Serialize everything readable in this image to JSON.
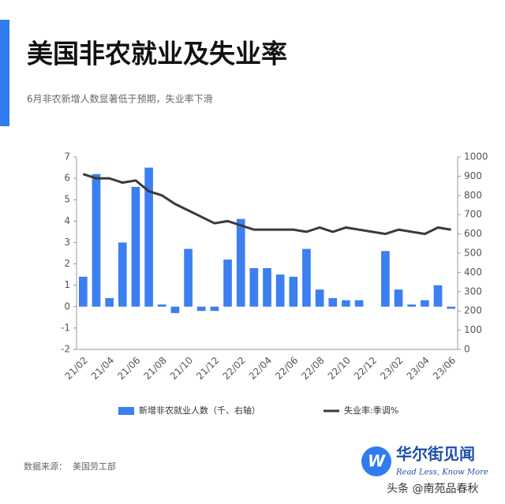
{
  "chart_data": {
    "type": "bar",
    "title": "美国非农就业及失业率",
    "subtitle": "6月非农新增人数显著低于预期，失业率下滑",
    "categories": [
      "21/02",
      null,
      "21/04",
      null,
      "21/06",
      null,
      "21/08",
      null,
      "21/10",
      null,
      "21/12",
      null,
      "22/02",
      null,
      "22/04",
      null,
      "22/06",
      null,
      "22/08",
      null,
      "22/10",
      null,
      "22/12",
      null,
      "23/02",
      null,
      "23/04",
      null,
      "23/06"
    ],
    "series": [
      {
        "name": "新增非农就业人数（千、右轴）",
        "type": "bar",
        "color": "#3b7ff0",
        "values": [
          1.4,
          6.2,
          0.4,
          3.0,
          5.6,
          6.5,
          0.1,
          -0.3,
          2.7,
          -0.2,
          -0.2,
          2.2,
          4.1,
          1.8,
          1.8,
          1.5,
          1.4,
          2.7,
          0.8,
          0.4,
          0.3,
          0.3,
          0.0,
          2.6,
          0.8,
          0.1,
          0.3,
          1.0,
          -0.1
        ]
      },
      {
        "name": "失业率:季调%",
        "type": "line",
        "color": "#3a3a3a",
        "values": [
          6.2,
          6.0,
          6.0,
          5.8,
          5.9,
          5.4,
          5.2,
          4.8,
          4.5,
          4.2,
          3.9,
          4.0,
          3.8,
          3.6,
          3.6,
          3.6,
          3.6,
          3.5,
          3.7,
          3.5,
          3.7,
          3.6,
          3.5,
          3.4,
          3.6,
          3.5,
          3.4,
          3.7,
          3.6
        ]
      }
    ],
    "ylim": [
      -2,
      7
    ],
    "yticks": [
      -2,
      -1,
      0,
      1,
      2,
      3,
      4,
      5,
      6,
      7
    ],
    "y2lim": [
      0,
      1000
    ],
    "y2ticks": [
      0,
      100,
      200,
      300,
      400,
      500,
      600,
      700,
      800,
      900,
      1000
    ],
    "grid": false
  },
  "footer": {
    "source_label": "数据来源：",
    "source": "美国劳工部",
    "brand": "华尔街见闻",
    "slogan": "Read Less, Know More",
    "watermark": "头条 @南苑品春秋"
  }
}
